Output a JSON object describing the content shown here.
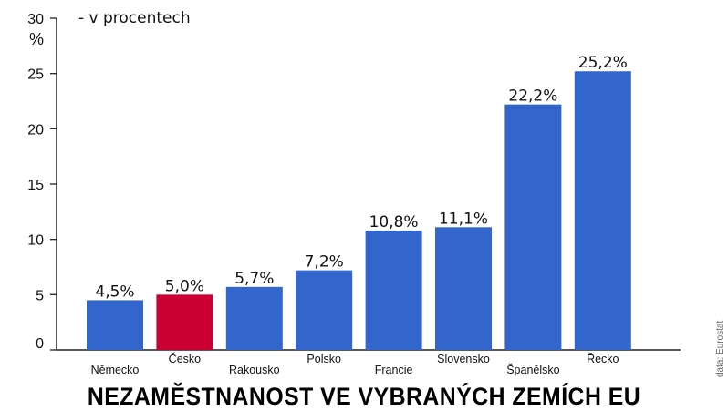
{
  "chart_data": {
    "type": "bar",
    "title": "NEZAMĚSTNANOST VE VYBRANÝCH ZEMÍCH EU",
    "subtitle": "- v procentech",
    "y_unit": "%",
    "ylim": [
      0,
      30
    ],
    "yticks": [
      "0",
      "5",
      "10",
      "15",
      "20",
      "25",
      "30"
    ],
    "grid": false,
    "categories": [
      "Německo",
      "Česko",
      "Rakousko",
      "Polsko",
      "Francie",
      "Slovensko",
      "Španělsko",
      "Řecko"
    ],
    "values": [
      4.5,
      5.0,
      5.7,
      7.2,
      10.8,
      11.1,
      22.2,
      25.2
    ],
    "value_labels": [
      "4,5%",
      "5,0%",
      "5,7%",
      "7,2%",
      "10,8%",
      "11,1%",
      "22,2%",
      "25,2%"
    ],
    "bar_colors": [
      "#3366cc",
      "#cc0033",
      "#3366cc",
      "#3366cc",
      "#3366cc",
      "#3366cc",
      "#3366cc",
      "#3366cc"
    ],
    "source": "data: Eurostat"
  }
}
